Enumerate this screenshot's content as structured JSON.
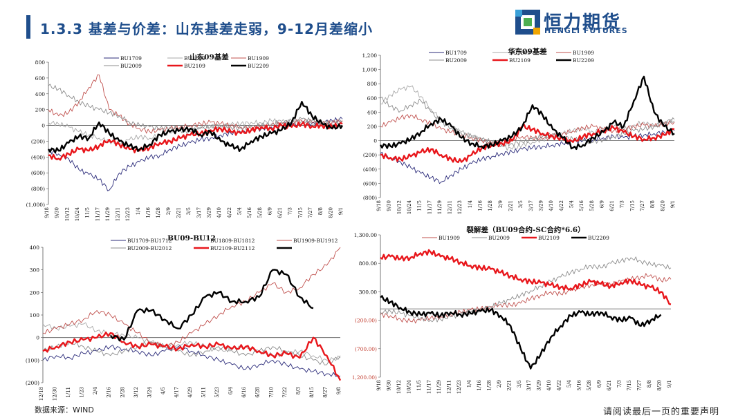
{
  "header": {
    "title": "1.3.3 基差与价差：山东基差走弱，9-12月差缩小",
    "logo_cn": "恒力期货",
    "logo_en": "HENGLI FUTURES"
  },
  "footer": {
    "source": "数据来源：WIND",
    "note": "请阅读最后一页的重要声明"
  },
  "colors": {
    "navy": "#1f4e8c",
    "BU1709": "#2b2b7a",
    "BU1809": "#a8a8a8",
    "BU1909": "#c0504d",
    "BU2009": "#8c8c8c",
    "BU2109": "#e8161b",
    "BU2209": "#000000"
  },
  "chart_data": [
    {
      "type": "line",
      "title": "山东09基差",
      "ylim": [
        -1000,
        800
      ],
      "yticks": [
        "800",
        "600",
        "400",
        "200",
        "0",
        "(200)",
        "(400)",
        "(600)",
        "(800)",
        "(1,000)"
      ],
      "x": [
        "9/18",
        "9/30",
        "10/12",
        "10/24",
        "11/5",
        "11/17",
        "11/29",
        "12/11",
        "12/23",
        "1/4",
        "1/16",
        "1/28",
        "2/9",
        "2/21",
        "3/5",
        "3/17",
        "3/29",
        "4/10",
        "4/22",
        "5/4",
        "5/16",
        "5/28",
        "6/9",
        "6/21",
        "7/3",
        "7/15",
        "7/27",
        "8/8",
        "8/20",
        "9/1"
      ],
      "series": [
        {
          "name": "BU1709",
          "values": [
            -320,
            -360,
            -420,
            -560,
            -620,
            -680,
            -820,
            -600,
            -520,
            -460,
            -400,
            -380,
            -300,
            -260,
            -220,
            -180,
            -160,
            -120,
            -100,
            -90,
            -60,
            -40,
            -20,
            0,
            10,
            20,
            30,
            40,
            60,
            80
          ]
        },
        {
          "name": "BU1809",
          "values": [
            40,
            20,
            -20,
            -80,
            -120,
            -160,
            -200,
            -240,
            -180,
            -140,
            -160,
            -120,
            -100,
            -60,
            -40,
            -20,
            0,
            -20,
            10,
            20,
            40,
            30,
            60,
            50,
            40,
            60,
            30,
            20,
            40,
            60
          ]
        },
        {
          "name": "BU1909",
          "values": [
            200,
            120,
            160,
            300,
            480,
            640,
            200,
            120,
            20,
            -40,
            -80,
            -60,
            -40,
            -20,
            0,
            20,
            40,
            20,
            0,
            -20,
            -40,
            -20,
            0,
            20,
            40,
            60,
            40,
            20,
            40,
            60
          ]
        },
        {
          "name": "BU2009",
          "values": [
            500,
            460,
            380,
            300,
            240,
            200,
            160,
            120,
            40,
            0,
            -20,
            -40,
            -20,
            -60,
            -80,
            -40,
            -20,
            0,
            -20,
            -40,
            -20,
            0,
            20,
            40,
            60,
            80,
            60,
            40,
            20,
            40
          ]
        },
        {
          "name": "BU2109",
          "values": [
            -380,
            -420,
            -360,
            -300,
            -320,
            -260,
            -180,
            -240,
            -300,
            -320,
            -280,
            -220,
            -200,
            -160,
            -120,
            -100,
            -60,
            -40,
            -80,
            -100,
            -60,
            -20,
            -40,
            0,
            -20,
            20,
            -10,
            0,
            -20,
            20
          ]
        },
        {
          "name": "BU2209",
          "values": [
            -300,
            -320,
            -220,
            -140,
            -160,
            40,
            -100,
            -200,
            -260,
            -300,
            -240,
            -120,
            -80,
            -60,
            -40,
            -120,
            -80,
            -200,
            -260,
            -300,
            -200,
            -140,
            -100,
            -60,
            40,
            300,
            120,
            20,
            -40,
            0
          ]
        }
      ]
    },
    {
      "type": "line",
      "title": "华东09基差",
      "ylim": [
        -800,
        1200
      ],
      "yticks": [
        "1,200",
        "1,000",
        "800",
        "600",
        "400",
        "200",
        "0",
        "(200)",
        "(400)",
        "(600)",
        "(800)"
      ],
      "x": [
        "9/18",
        "9/30",
        "10/12",
        "10/24",
        "11/5",
        "11/17",
        "11/29",
        "12/11",
        "12/23",
        "1/4",
        "1/16",
        "1/28",
        "2/9",
        "2/21",
        "3/5",
        "3/17",
        "3/29",
        "4/10",
        "4/22",
        "5/4",
        "5/16",
        "5/28",
        "6/9",
        "6/21",
        "7/3",
        "7/15",
        "7/27",
        "8/8",
        "8/20",
        "9/1"
      ],
      "series": [
        {
          "name": "BU1709",
          "values": [
            -180,
            -240,
            -300,
            -380,
            -460,
            -520,
            -580,
            -480,
            -400,
            -320,
            -260,
            -220,
            -180,
            -160,
            -120,
            -100,
            -80,
            -60,
            -40,
            -20,
            0,
            20,
            40,
            60,
            40,
            60,
            80,
            100,
            120,
            140
          ]
        },
        {
          "name": "BU1809",
          "values": [
            520,
            640,
            720,
            760,
            620,
            440,
            300,
            200,
            120,
            60,
            20,
            -40,
            -80,
            -120,
            -60,
            -20,
            20,
            60,
            100,
            140,
            180,
            120,
            160,
            200,
            160,
            220,
            260,
            200,
            240,
            280
          ]
        },
        {
          "name": "BU1909",
          "values": [
            200,
            260,
            320,
            360,
            300,
            240,
            160,
            120,
            80,
            40,
            0,
            -40,
            -20,
            20,
            60,
            40,
            20,
            60,
            100,
            140,
            180,
            200,
            160,
            140,
            160,
            200,
            220,
            200,
            240,
            260
          ]
        },
        {
          "name": "BU2009",
          "values": [
            600,
            480,
            420,
            500,
            560,
            400,
            260,
            180,
            100,
            60,
            20,
            -20,
            -60,
            -40,
            -20,
            20,
            60,
            100,
            60,
            20,
            0,
            -20,
            20,
            60,
            100,
            140,
            160,
            200,
            260,
            300
          ]
        },
        {
          "name": "BU2109",
          "values": [
            -200,
            -240,
            -260,
            -220,
            -160,
            -120,
            -200,
            -260,
            -300,
            -200,
            -100,
            -60,
            -40,
            0,
            200,
            160,
            100,
            60,
            20,
            -20,
            60,
            100,
            140,
            180,
            120,
            60,
            20,
            40,
            80,
            160
          ]
        },
        {
          "name": "BU2209",
          "values": [
            -60,
            -80,
            -40,
            20,
            120,
            240,
            300,
            200,
            40,
            -40,
            -80,
            -60,
            0,
            60,
            200,
            500,
            360,
            160,
            40,
            -100,
            -60,
            40,
            120,
            260,
            200,
            560,
            900,
            400,
            200,
            100
          ]
        }
      ]
    },
    {
      "type": "line",
      "title": "BU09-BU12",
      "ylim": [
        -200,
        400
      ],
      "yticks": [
        "400",
        "300",
        "200",
        "100",
        "0",
        "(100)",
        "(200)"
      ],
      "x": [
        "12/18",
        "12/30",
        "1/11",
        "1/23",
        "2/4",
        "2/16",
        "2/28",
        "3/12",
        "3/24",
        "4/5",
        "4/17",
        "4/29",
        "5/11",
        "5/23",
        "6/4",
        "6/16",
        "6/28",
        "7/10",
        "7/22",
        "8/3",
        "8/15",
        "8/27",
        "9/8"
      ],
      "series": [
        {
          "name": "BU1709-BU1712",
          "values": [
            -100,
            -80,
            -90,
            -70,
            -60,
            -40,
            -50,
            -60,
            -80,
            -60,
            -40,
            -60,
            -80,
            -100,
            -120,
            -140,
            -120,
            -100,
            -120,
            -140,
            -150,
            -160,
            -170
          ]
        },
        {
          "name": "BU1809-BU1812",
          "values": [
            60,
            40,
            50,
            60,
            30,
            20,
            10,
            0,
            -20,
            -40,
            -30,
            -20,
            -40,
            -60,
            -50,
            -40,
            -60,
            -80,
            -70,
            -60,
            -80,
            -100,
            -90
          ]
        },
        {
          "name": "BU1909-BU1912",
          "values": [
            20,
            40,
            60,
            80,
            120,
            100,
            60,
            20,
            -20,
            -40,
            -20,
            20,
            60,
            100,
            140,
            160,
            200,
            240,
            200,
            220,
            280,
            320,
            400
          ]
        },
        {
          "name": "BU2009-BU2012",
          "values": [
            -60,
            -40,
            -20,
            -40,
            -60,
            -80,
            -60,
            -40,
            -20,
            -40,
            -60,
            -80,
            -60,
            -40,
            -60,
            -80,
            -60,
            -40,
            -60,
            -80,
            -100,
            -120,
            -80
          ]
        },
        {
          "name": "BU2109-BU2112",
          "values": [
            -60,
            -40,
            -20,
            -10,
            0,
            20,
            -20,
            -40,
            -30,
            -40,
            -50,
            -30,
            -40,
            -30,
            -50,
            -40,
            -60,
            -80,
            -70,
            -90,
            0,
            -80,
            -190
          ]
        },
        {
          "name": "BU2209-BU2212",
          "values": [
            null,
            null,
            null,
            null,
            null,
            10,
            -10,
            120,
            120,
            80,
            40,
            100,
            180,
            200,
            160,
            160,
            180,
            300,
            280,
            180,
            130,
            null,
            null
          ]
        }
      ]
    },
    {
      "type": "line",
      "title": "裂解差（BU09合约-SC合约*6.6）",
      "ylim": [
        -1200,
        1300
      ],
      "yticks": [
        "1,300.00",
        "800.00",
        "300.00",
        "(200.00)",
        "(700.00)",
        "(1,200.00)"
      ],
      "x": [
        "9/18",
        "9/30",
        "10/12",
        "10/24",
        "11/5",
        "11/17",
        "11/29",
        "12/11",
        "12/23",
        "1/4",
        "1/16",
        "1/28",
        "2/9",
        "2/21",
        "3/5",
        "3/17",
        "3/29",
        "4/10",
        "4/22",
        "5/4",
        "5/16",
        "5/28",
        "6/9",
        "6/21",
        "7/3",
        "7/15",
        "7/27",
        "8/8",
        "8/20",
        "9/1"
      ],
      "series": [
        {
          "name": "BU1909",
          "values": [
            -100,
            -120,
            -180,
            -220,
            -200,
            -160,
            -140,
            -100,
            -60,
            -20,
            0,
            40,
            80,
            60,
            100,
            180,
            240,
            300,
            260,
            320,
            380,
            420,
            460,
            420,
            480,
            520,
            560,
            600,
            500,
            520
          ]
        },
        {
          "name": "BU2009",
          "values": [
            -60,
            -40,
            -80,
            -120,
            -160,
            -200,
            -180,
            -140,
            -100,
            -60,
            -20,
            40,
            100,
            160,
            240,
            320,
            400,
            480,
            560,
            640,
            700,
            760,
            720,
            800,
            840,
            900,
            840,
            780,
            760,
            720
          ]
        },
        {
          "name": "BU2109",
          "values": [
            900,
            920,
            880,
            900,
            980,
            1000,
            920,
            880,
            820,
            760,
            720,
            700,
            640,
            580,
            520,
            480,
            460,
            420,
            380,
            360,
            420,
            480,
            440,
            400,
            460,
            500,
            420,
            380,
            300,
            80
          ]
        },
        {
          "name": "BU2209",
          "values": [
            200,
            120,
            20,
            -60,
            -100,
            -80,
            -120,
            -60,
            -100,
            -80,
            -40,
            -20,
            -120,
            -300,
            -700,
            -1050,
            -800,
            -500,
            -300,
            -120,
            -60,
            -100,
            -60,
            -140,
            -200,
            -160,
            -300,
            -200,
            -100,
            null
          ]
        }
      ]
    }
  ]
}
